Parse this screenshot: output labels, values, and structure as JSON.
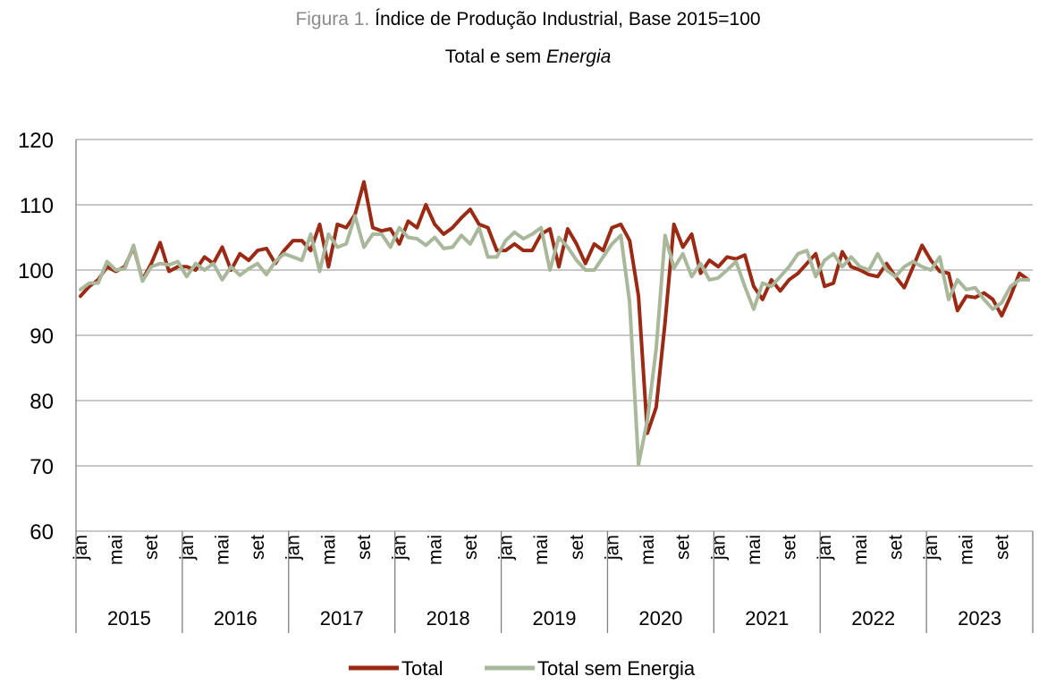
{
  "title": {
    "prefix": "Figura 1.",
    "main": "Índice de Produção Industrial, Base 2015=100",
    "subtitle_plain": "Total e sem ",
    "subtitle_italic": "Energia"
  },
  "colors": {
    "total": "#9b2a15",
    "sem_energia": "#a9b89a",
    "grid": "#a6a6a6",
    "axis": "#808080"
  },
  "chart_data": {
    "type": "line",
    "title": "Índice de Produção Industrial, Base 2015=100 — Total e sem Energia",
    "ylim": [
      60,
      120
    ],
    "yticks": [
      60,
      70,
      80,
      90,
      100,
      110,
      120
    ],
    "grid": true,
    "legend_position": "bottom-center",
    "years": [
      "2015",
      "2016",
      "2017",
      "2018",
      "2019",
      "2020",
      "2021",
      "2022",
      "2023"
    ],
    "month_tick_labels": [
      "jan",
      "mai",
      "set"
    ],
    "months_per_year": 12,
    "series": [
      {
        "name": "Total",
        "values": [
          96.0,
          97.5,
          98.5,
          100.5,
          99.8,
          100.5,
          103.5,
          98.5,
          101.0,
          104.2,
          99.8,
          100.5,
          100.5,
          100.0,
          102.0,
          101.0,
          103.5,
          100.0,
          102.5,
          101.5,
          103.0,
          103.3,
          101.0,
          103.0,
          104.5,
          104.5,
          103.0,
          107.0,
          100.5,
          107.0,
          106.5,
          108.5,
          113.5,
          106.5,
          106.0,
          106.3,
          104.0,
          107.5,
          106.5,
          110.0,
          107.0,
          105.5,
          106.5,
          108.0,
          109.3,
          107.0,
          106.5,
          103.0,
          103.0,
          104.0,
          103.0,
          103.0,
          105.5,
          106.3,
          100.5,
          106.3,
          104.0,
          101.0,
          104.0,
          103.0,
          106.5,
          107.0,
          104.5,
          96.0,
          75.0,
          79.0,
          92.0,
          107.0,
          103.5,
          105.5,
          99.5,
          101.5,
          100.5,
          102.0,
          101.7,
          102.3,
          97.5,
          95.5,
          98.5,
          96.8,
          98.5,
          99.5,
          101.0,
          102.5,
          97.5,
          98.0,
          102.8,
          100.5,
          100.0,
          99.3,
          99.0,
          101.0,
          99.0,
          97.3,
          100.5,
          103.8,
          101.5,
          99.8,
          99.5,
          93.8,
          96.0,
          95.8,
          96.5,
          95.5,
          93.0,
          96.0,
          99.5,
          98.5
        ]
      },
      {
        "name": "Total sem Energia",
        "values": [
          97.0,
          98.0,
          98.0,
          101.3,
          100.0,
          100.2,
          103.8,
          98.3,
          100.5,
          101.0,
          100.8,
          101.3,
          99.0,
          101.0,
          100.0,
          101.0,
          98.5,
          100.5,
          99.2,
          100.2,
          101.0,
          99.3,
          101.3,
          102.5,
          102.0,
          101.5,
          105.5,
          99.8,
          105.5,
          103.5,
          104.0,
          108.3,
          103.5,
          105.5,
          105.5,
          103.5,
          106.5,
          105.0,
          104.8,
          103.8,
          105.0,
          103.3,
          103.5,
          105.3,
          104.0,
          106.5,
          102.0,
          102.0,
          104.5,
          105.8,
          104.8,
          105.5,
          106.5,
          100.0,
          105.0,
          103.5,
          101.5,
          100.0,
          100.0,
          102.0,
          104.0,
          105.3,
          95.0,
          70.2,
          77.0,
          88.0,
          105.3,
          100.3,
          102.5,
          99.0,
          101.0,
          98.5,
          98.8,
          100.0,
          101.3,
          97.5,
          94.0,
          98.0,
          97.5,
          99.0,
          100.5,
          102.5,
          103.0,
          99.0,
          101.5,
          102.5,
          100.5,
          102.0,
          100.5,
          100.0,
          102.5,
          100.0,
          99.0,
          100.5,
          101.3,
          100.5,
          100.0,
          102.0,
          95.5,
          98.5,
          97.0,
          97.3,
          95.5,
          94.0,
          95.0,
          97.5,
          98.5,
          98.5
        ]
      }
    ]
  }
}
